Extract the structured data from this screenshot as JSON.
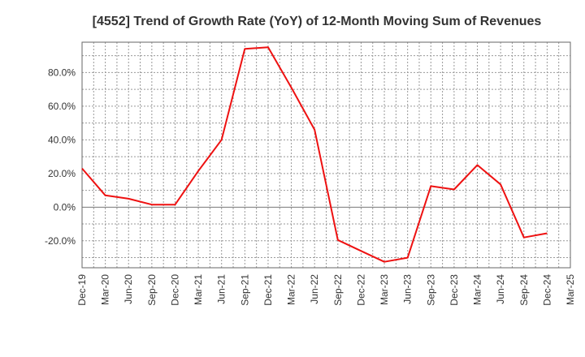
{
  "chart_data": {
    "type": "line",
    "title": "[4552]  Trend of Growth Rate (YoY) of 12-Month Moving Sum of Revenues",
    "xlabel": "",
    "ylabel": "",
    "x_ticks": [
      "Dec-19",
      "Mar-20",
      "Jun-20",
      "Sep-20",
      "Dec-20",
      "Mar-21",
      "Jun-21",
      "Sep-21",
      "Dec-21",
      "Mar-22",
      "Jun-22",
      "Sep-22",
      "Dec-22",
      "Mar-23",
      "Jun-23",
      "Sep-23",
      "Dec-23",
      "Mar-24",
      "Jun-24",
      "Sep-24",
      "Dec-24",
      "Mar-25"
    ],
    "y_ticks": [
      "-20.0%",
      "0.0%",
      "20.0%",
      "40.0%",
      "60.0%",
      "80.0%"
    ],
    "ylim": [
      -36,
      98
    ],
    "grid": true,
    "line_color": "#ee1111",
    "series": [
      {
        "x": [
          "Dec-19",
          "Mar-20",
          "Jun-20",
          "Sep-20",
          "Dec-20",
          "Mar-21",
          "Jun-21",
          "Sep-21",
          "Dec-21",
          "Mar-22",
          "Jun-22",
          "Sep-22",
          "Dec-22",
          "Mar-23",
          "Jun-23",
          "Sep-23",
          "Dec-23",
          "Mar-24",
          "Jun-24",
          "Sep-24",
          "Dec-24"
        ],
        "values": [
          23.0,
          7.0,
          5.0,
          1.5,
          1.5,
          21.5,
          40.0,
          94.0,
          95.0,
          71.0,
          46.0,
          -19.5,
          -26.0,
          -32.5,
          -30.0,
          12.5,
          10.5,
          25.0,
          13.5,
          -18.0,
          -15.5
        ]
      }
    ]
  }
}
